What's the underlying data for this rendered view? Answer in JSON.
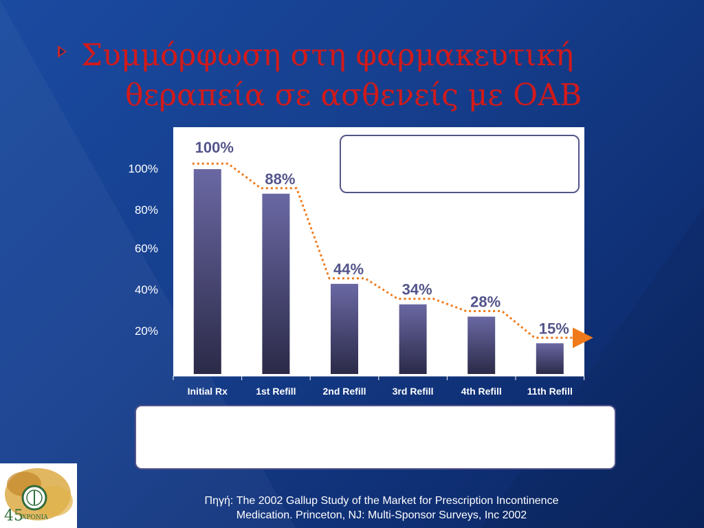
{
  "slide": {
    "title_line1": "Συμμόρφωση στη φαρμακευτική",
    "title_line2": "θεραπεία σε ασθενείς με OAB",
    "source_line1": "Πηγή:  The 2002 Gallup Study of the Market for Prescription Incontinence",
    "source_line2": "Medication. Princeton, NJ: Multi-Sponsor Surveys, Inc 2002",
    "logo_text": "45",
    "logo_subtext": "ΧΡΟΝΙΑ"
  },
  "colors": {
    "title": "#d21a1a",
    "bar_top": "#6a68a3",
    "bar_bottom": "#2b2a48",
    "trend_line": "#f07a1a",
    "data_label": "#53548a"
  },
  "chart_data": {
    "type": "bar",
    "title": "",
    "xlabel": "",
    "ylabel": "",
    "categories": [
      "Initial Rx",
      "1st Refill",
      "2nd Refill",
      "3rd Refill",
      "4th Refill",
      "11th Refill"
    ],
    "values": [
      100,
      88,
      44,
      34,
      28,
      15
    ],
    "data_labels": [
      "100%",
      "88%",
      "44%",
      "34%",
      "28%",
      "15%"
    ],
    "y_ticks": [
      "20%",
      "40%",
      "60%",
      "80%",
      "100%"
    ],
    "ylim": [
      0,
      100
    ],
    "grid": false,
    "trend_line": "dotted step line with arrow",
    "legend": "none"
  }
}
